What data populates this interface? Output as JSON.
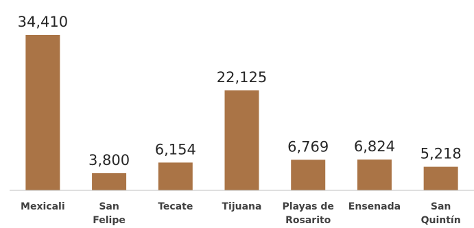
{
  "chart_data": {
    "type": "bar",
    "title": "",
    "xlabel": "",
    "ylabel": "",
    "bar_color": "#AA7446",
    "axis_color": "#BFBFBF",
    "ylim": [
      0,
      34410
    ],
    "grid": false,
    "legend": "none",
    "categories": [
      [
        "Mexicali"
      ],
      [
        "San",
        "Felipe"
      ],
      [
        "Tecate"
      ],
      [
        "Tijuana"
      ],
      [
        "Playas de",
        "Rosarito"
      ],
      [
        "Ensenada"
      ],
      [
        "San",
        "Quintín"
      ]
    ],
    "values": [
      34410,
      3800,
      6154,
      22125,
      6769,
      6824,
      5218
    ],
    "data_labels": [
      "34,410",
      "3,800",
      "6,154",
      "22,125",
      "6,769",
      "6,824",
      "5,218"
    ]
  }
}
